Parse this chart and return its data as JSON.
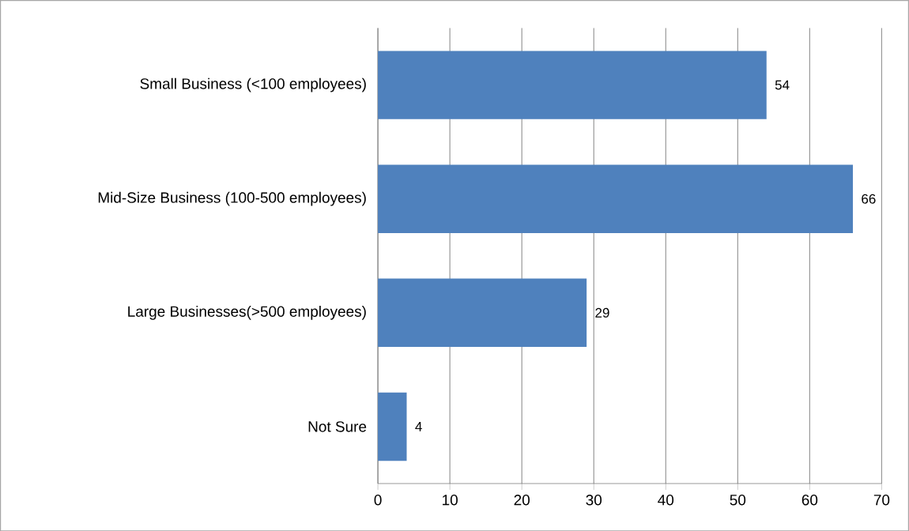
{
  "chart_data": {
    "type": "bar",
    "orientation": "horizontal",
    "categories": [
      "Small Business (<100 employees)",
      "Mid-Size Business (100-500 employees)",
      "Large Businesses(>500 employees)",
      "Not Sure"
    ],
    "values": [
      54,
      66,
      29,
      4
    ],
    "color": "#4f81bd",
    "xlim": [
      0,
      70
    ],
    "xticks": [
      0,
      10,
      20,
      30,
      40,
      50,
      60,
      70
    ],
    "grid": "x",
    "data_labels": true
  }
}
